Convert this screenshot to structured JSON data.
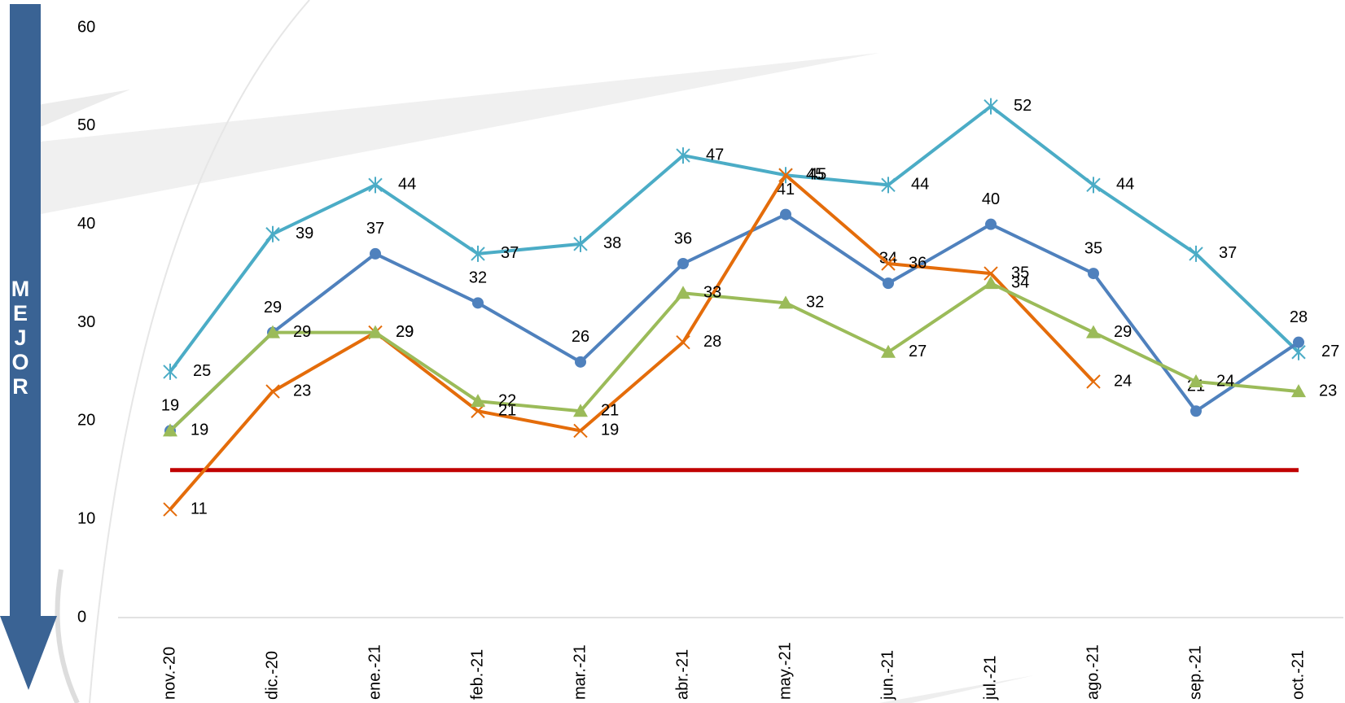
{
  "arrow_label": "MEJOR",
  "chart_data": {
    "type": "line",
    "categories": [
      "nov.-20",
      "dic.-20",
      "ene.-21",
      "feb.-21",
      "mar.-21",
      "abr.-21",
      "may.-21",
      "jun.-21",
      "jul.-21",
      "ago.-21",
      "sep.-21",
      "oct.-21"
    ],
    "ylim": [
      0,
      60
    ],
    "yticks": [
      0,
      10,
      20,
      30,
      40,
      50,
      60
    ],
    "reference_line": {
      "value": 15,
      "color": "#c00000"
    },
    "series": [
      {
        "color": "#4bacc6",
        "marker": "star",
        "values": [
          25,
          39,
          44,
          37,
          38,
          47,
          45,
          44,
          52,
          44,
          37,
          27
        ]
      },
      {
        "color": "#4f81bd",
        "marker": "circle",
        "values": [
          19,
          29,
          37,
          32,
          26,
          36,
          41,
          34,
          40,
          35,
          21,
          28
        ]
      },
      {
        "color": "#e46c0a",
        "marker": "x",
        "values": [
          11,
          23,
          29,
          21,
          19,
          28,
          45,
          36,
          35,
          24,
          null,
          null
        ]
      },
      {
        "color": "#9bbb59",
        "marker": "triangle",
        "values": [
          19,
          29,
          29,
          22,
          21,
          33,
          32,
          27,
          34,
          29,
          24,
          23
        ]
      }
    ]
  }
}
